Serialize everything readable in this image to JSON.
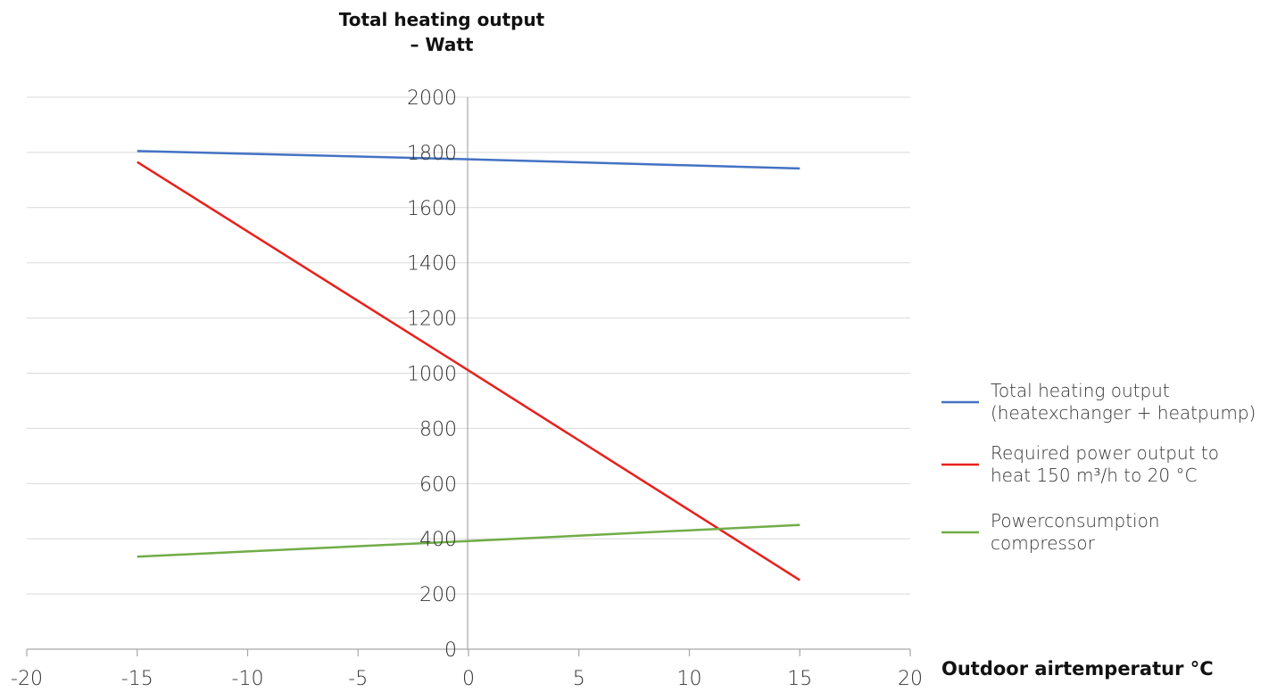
{
  "chart_data": {
    "type": "line",
    "title": "",
    "ylabel": [
      "Total heating output",
      "– Watt"
    ],
    "xlabel": "Outdoor airtemperatur °C",
    "xlim": [
      -20,
      20
    ],
    "ylim": [
      0,
      2000
    ],
    "x_ticks": [
      -20,
      -15,
      -10,
      -5,
      0,
      5,
      10,
      15,
      20
    ],
    "y_ticks": [
      0,
      200,
      400,
      600,
      800,
      1000,
      1200,
      1400,
      1600,
      1800,
      2000
    ],
    "grid": "horizontal",
    "legend_position": "right",
    "series": [
      {
        "name": [
          "Total heating output",
          "(heatexchanger + heatpump)"
        ],
        "color": "#4472c4",
        "x": [
          -15,
          0,
          15
        ],
        "y": [
          1805,
          1775,
          1742
        ]
      },
      {
        "name": [
          "Required power output to",
          "heat 150 m³/h to 20 °C"
        ],
        "color": "#e8201c",
        "x": [
          -15,
          0,
          15
        ],
        "y": [
          1765,
          1010,
          250
        ]
      },
      {
        "name": [
          "Powerconsumption",
          "compressor"
        ],
        "color": "#70ad47",
        "x": [
          -15,
          0,
          15
        ],
        "y": [
          335,
          392,
          450
        ]
      }
    ]
  }
}
